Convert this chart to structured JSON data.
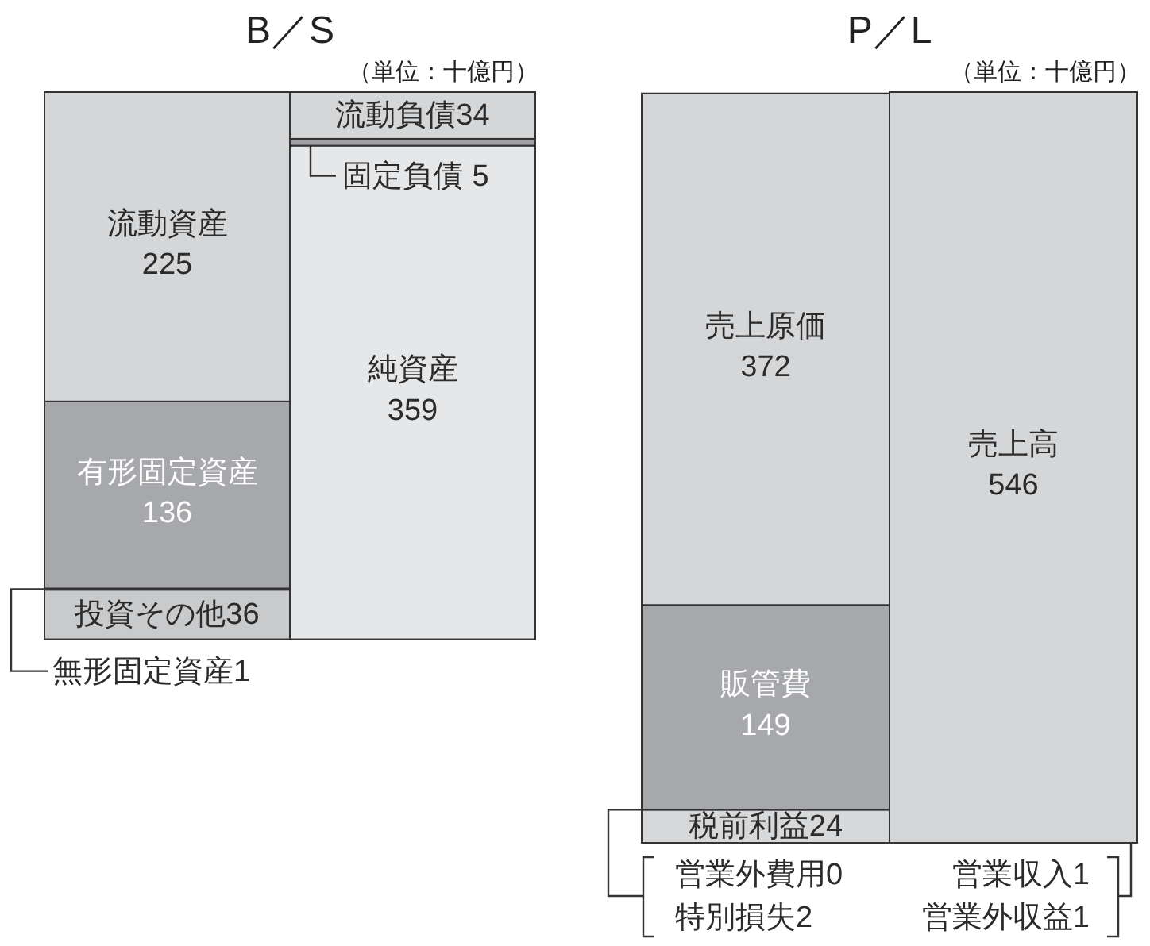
{
  "chart_data": [
    {
      "type": "bar",
      "stacked": true,
      "title": "B／S",
      "subtitle": "（単位：十億円）",
      "categories": [
        null,
        null
      ],
      "data_labels": true,
      "series": [
        {
          "name": "投資その他",
          "color": "#c9cacc",
          "values": [
            36,
            null
          ]
        },
        {
          "name": "無形固定資産",
          "color": "#3c3c3c",
          "values": [
            1,
            null
          ]
        },
        {
          "name": "有形固定資産",
          "color": "#a7a8ab",
          "values": [
            136,
            null
          ]
        },
        {
          "name": "流動資産",
          "color": "#d5d6d8",
          "values": [
            225,
            null
          ]
        },
        {
          "name": "純資産",
          "color": "#e6e7e8",
          "values": [
            null,
            359
          ]
        },
        {
          "name": "固定負債",
          "color": "#9fa0a3",
          "values": [
            null,
            5
          ]
        },
        {
          "name": "流動負債",
          "color": "#d5d6d8",
          "values": [
            null,
            34
          ]
        }
      ]
    },
    {
      "type": "bar",
      "stacked": true,
      "title": "P／L",
      "subtitle": "（単位：十億円）",
      "categories": [
        null,
        null
      ],
      "data_labels": true,
      "annotations": [
        "営業外費用0",
        "特別損失2",
        "営業収入1",
        "営業外収益1"
      ],
      "series": [
        {
          "name": "税前利益",
          "color": "#d7d8da",
          "values": [
            24,
            null
          ]
        },
        {
          "name": "販管費",
          "color": "#a7a8ab",
          "values": [
            149,
            null
          ]
        },
        {
          "name": "売上原価",
          "color": "#d5d6d8",
          "values": [
            372,
            null
          ]
        },
        {
          "name": "売上高",
          "color": "#d5d6d8",
          "values": [
            null,
            546
          ]
        }
      ]
    }
  ]
}
